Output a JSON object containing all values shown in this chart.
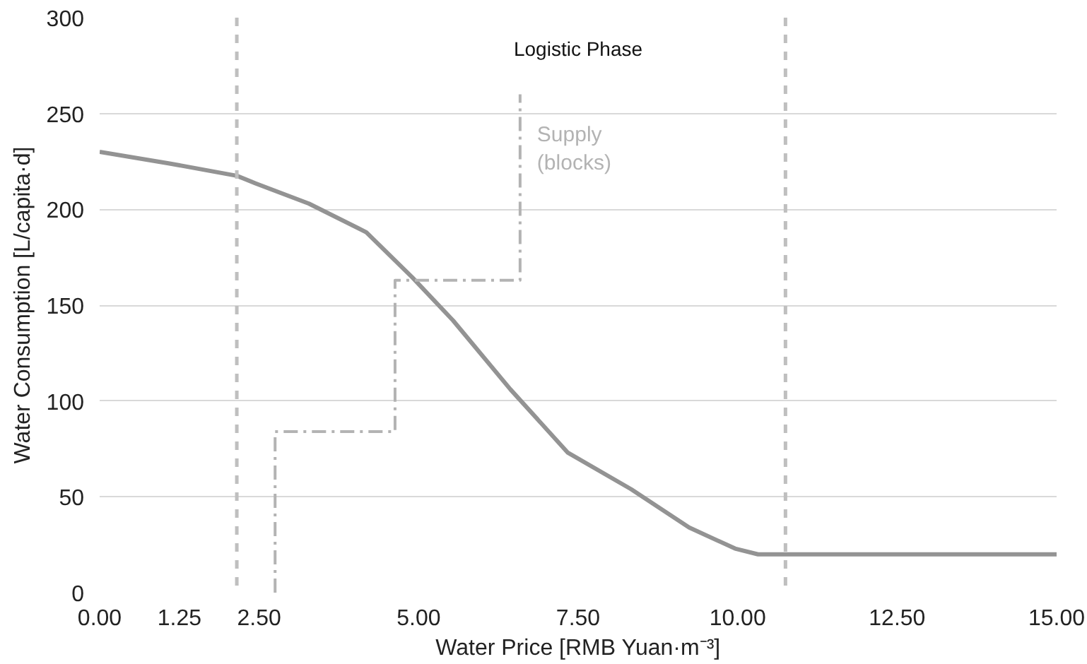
{
  "chart_data": {
    "type": "line",
    "xlabel": "Water Price [RMB Yuan·m⁻³]",
    "ylabel": "Water Consumption [L/capita·d]",
    "xlim": [
      0,
      15
    ],
    "xticks": [
      {
        "value": 0,
        "label": "0.00"
      },
      {
        "value": 1.25,
        "label": "1.25"
      },
      {
        "value": 2.5,
        "label": "2.50"
      },
      {
        "value": 5,
        "label": "5.00"
      },
      {
        "value": 7.5,
        "label": "7.50"
      },
      {
        "value": 10,
        "label": "10.00"
      },
      {
        "value": 12.5,
        "label": "12.50"
      },
      {
        "value": 15,
        "label": "15.00"
      }
    ],
    "ylim": [
      0,
      300
    ],
    "yticks": [
      0,
      50,
      100,
      150,
      200,
      250,
      300
    ],
    "grid": "y",
    "marker": "none",
    "series": [
      {
        "color": "#939393",
        "line_style": "solid",
        "x": [
          0,
          1.08,
          2.15,
          2.44,
          3.28,
          4.18,
          4.9,
          5.54,
          6.44,
          7.34,
          8.33,
          9.24,
          9.96,
          10.32,
          15
        ],
        "values": [
          230,
          224,
          217.5,
          213.6,
          203,
          188,
          164.5,
          142,
          106,
          73,
          54,
          34,
          23,
          20,
          20
        ]
      },
      {
        "name": "Supply\n(blocks)",
        "color": "#b3b3b3",
        "line_style": "dashdot",
        "x": [
          2.75,
          2.75,
          4.63,
          4.63,
          6.59,
          6.59
        ],
        "values": [
          0,
          84,
          84,
          163,
          163,
          260
        ]
      }
    ],
    "ref_lines": [
      {
        "axis": "x",
        "value": 2.15,
        "color": "#bfbfbf",
        "line_style": "dashed"
      },
      {
        "axis": "x",
        "value": 10.75,
        "color": "#bfbfbf",
        "line_style": "dashed"
      }
    ],
    "annotations": [
      "Logistic Phase"
    ]
  }
}
